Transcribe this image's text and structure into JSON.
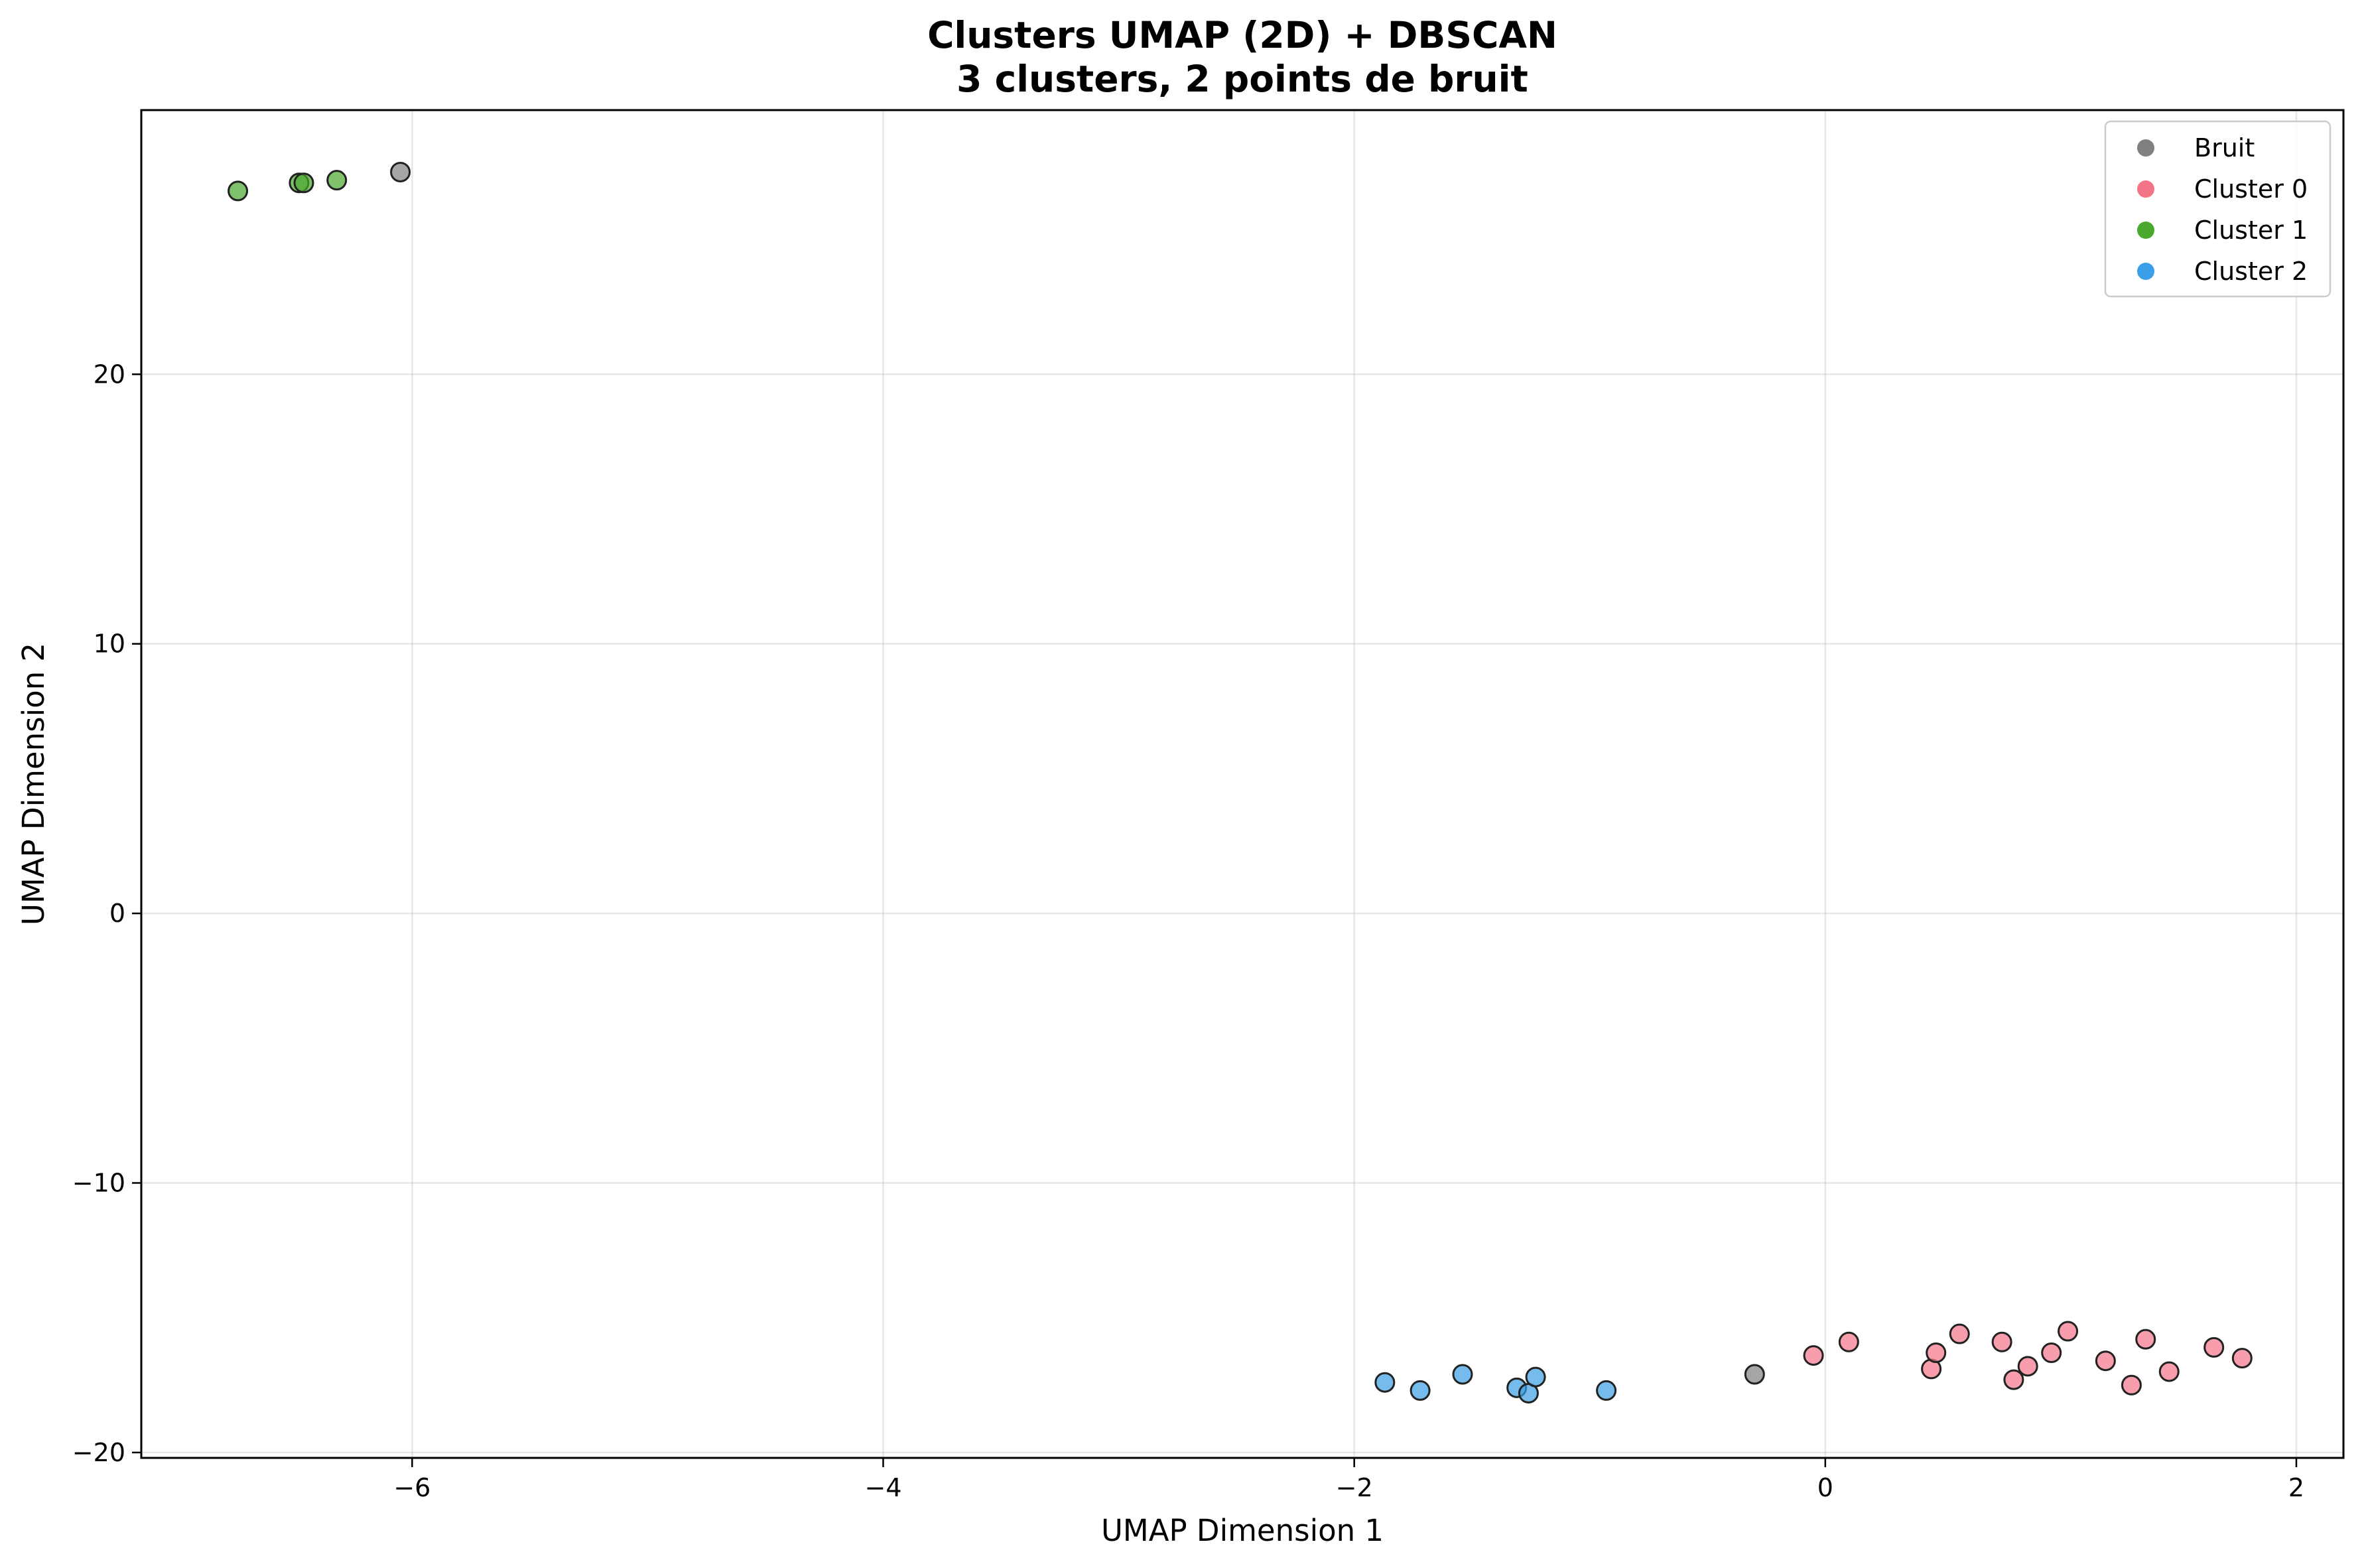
{
  "chart_data": {
    "type": "scatter",
    "title": "Clusters UMAP (2D) + DBSCAN",
    "subtitle": "3 clusters, 2 points de bruit",
    "xlabel": "UMAP Dimension 1",
    "ylabel": "UMAP Dimension 2",
    "xlim": [
      -7.15,
      2.2
    ],
    "ylim": [
      -20.2,
      29.8
    ],
    "xticks": [
      -6,
      -4,
      -2,
      0,
      2
    ],
    "yticks": [
      -20,
      -10,
      0,
      10,
      20
    ],
    "xtick_labels": [
      "−6",
      "−4",
      "−2",
      "0",
      "2"
    ],
    "ytick_labels": [
      "−20",
      "−10",
      "0",
      "10",
      "20"
    ],
    "grid": true,
    "legend_position": "top-right",
    "series": [
      {
        "name": "Bruit",
        "color": "#808080",
        "points": [
          [
            -6.05,
            27.5
          ],
          [
            -0.3,
            -17.1
          ]
        ]
      },
      {
        "name": "Cluster 0",
        "color": "#f37487",
        "points": [
          [
            -0.05,
            -16.4
          ],
          [
            0.1,
            -15.9
          ],
          [
            0.45,
            -16.9
          ],
          [
            0.47,
            -16.3
          ],
          [
            0.57,
            -15.6
          ],
          [
            0.75,
            -15.9
          ],
          [
            0.8,
            -17.3
          ],
          [
            0.86,
            -16.8
          ],
          [
            0.96,
            -16.3
          ],
          [
            1.03,
            -15.5
          ],
          [
            1.19,
            -16.6
          ],
          [
            1.3,
            -17.5
          ],
          [
            1.36,
            -15.8
          ],
          [
            1.46,
            -17.0
          ],
          [
            1.65,
            -16.1
          ],
          [
            1.77,
            -16.5
          ]
        ]
      },
      {
        "name": "Cluster 1",
        "color": "#4aa82e",
        "points": [
          [
            -6.74,
            26.8
          ],
          [
            -6.48,
            27.1
          ],
          [
            -6.46,
            27.1
          ],
          [
            -6.32,
            27.2
          ]
        ]
      },
      {
        "name": "Cluster 2",
        "color": "#3a9fe6",
        "points": [
          [
            -1.87,
            -17.4
          ],
          [
            -1.72,
            -17.7
          ],
          [
            -1.54,
            -17.1
          ],
          [
            -1.31,
            -17.6
          ],
          [
            -1.26,
            -17.8
          ],
          [
            -1.23,
            -17.2
          ],
          [
            -0.93,
            -17.7
          ]
        ]
      }
    ]
  }
}
